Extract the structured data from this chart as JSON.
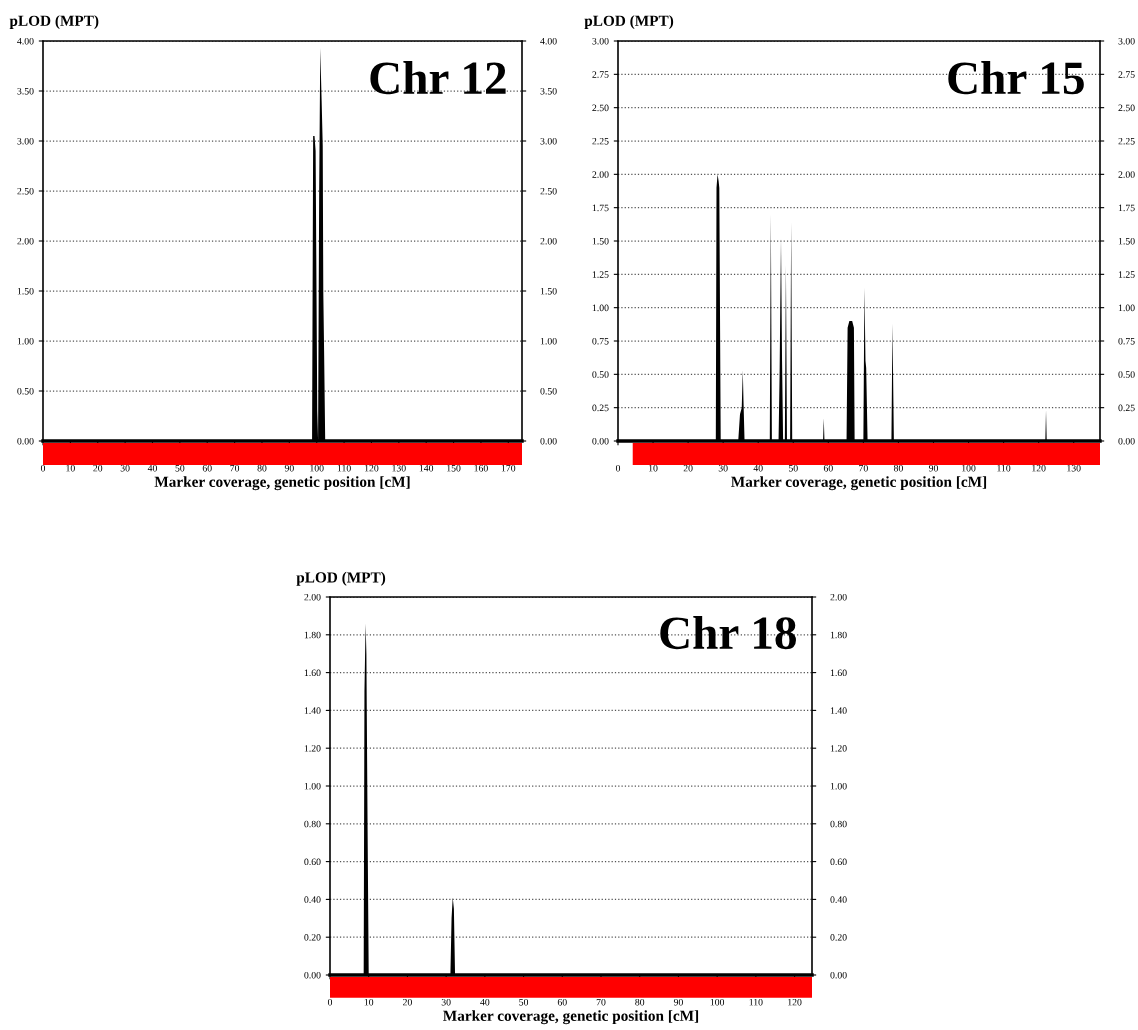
{
  "chart_data": [
    {
      "type": "area",
      "ylabel": "pLOD (MPT)",
      "xlabel": "Marker coverage, genetic position [cM]",
      "annotations": [
        "Chr 12"
      ],
      "grid": "y",
      "series": [
        {
          "color": "#000000",
          "x": [
            0,
            98.3,
            98.7,
            99.2,
            99.6,
            100.2,
            100.5,
            100.9,
            101.3,
            101.7,
            101.8,
            102.2,
            102.4,
            102.7,
            103.1,
            175
          ],
          "values": [
            0,
            0,
            3.05,
            3.05,
            2.9,
            0.3,
            0,
            2.5,
            3.93,
            3.5,
            3.4,
            2.95,
            1.5,
            0.9,
            0,
            0
          ]
        }
      ],
      "xlim": [
        0,
        175
      ],
      "xticks": [
        0,
        10,
        20,
        30,
        40,
        50,
        60,
        70,
        80,
        90,
        100,
        110,
        120,
        130,
        140,
        150,
        160,
        170
      ],
      "ylim": [
        0,
        4
      ],
      "yticks": [
        {
          "value": 0,
          "label": "0.00"
        },
        {
          "value": 0.5,
          "label": "0.50"
        },
        {
          "value": 1,
          "label": "1.00"
        },
        {
          "value": 1.5,
          "label": "1.50"
        },
        {
          "value": 2,
          "label": "2.00"
        },
        {
          "value": 2.5,
          "label": "2.50"
        },
        {
          "value": 3,
          "label": "3.00"
        },
        {
          "value": 3.5,
          "label": "3.50"
        },
        {
          "value": 4,
          "label": "4.00"
        }
      ],
      "y2lim": [
        0,
        4
      ],
      "y2ticks": [
        {
          "value": 0,
          "label": "0.00"
        },
        {
          "value": 0.5,
          "label": "0.50"
        },
        {
          "value": 1,
          "label": "1.00"
        },
        {
          "value": 1.5,
          "label": "1.50"
        },
        {
          "value": 2,
          "label": "2.00"
        },
        {
          "value": 2.5,
          "label": "2.50"
        },
        {
          "value": 3,
          "label": "3.00"
        },
        {
          "value": 3.5,
          "label": "3.50"
        },
        {
          "value": 4,
          "label": "4.00"
        }
      ]
    },
    {
      "type": "area",
      "ylabel": "pLOD (MPT)",
      "xlabel": "Marker coverage, genetic position [cM]",
      "annotations": [
        "Chr 15"
      ],
      "grid": "y",
      "series": [
        {
          "color": "#000000",
          "x": [
            4.2,
            27.9,
            28.1,
            28.4,
            28.7,
            28.9,
            29.3,
            34.3,
            34.8,
            35.3,
            35.6,
            35.8,
            36.1,
            43.3,
            43.6,
            43.9,
            45.8,
            46.1,
            46.5,
            46.8,
            47.1,
            47.6,
            47.9,
            48.2,
            49.1,
            49.4,
            49.7,
            58.5,
            58.7,
            58.9,
            65.2,
            65.5,
            66.0,
            66.8,
            67.3,
            67.5,
            70.0,
            70.3,
            70.6,
            70.8,
            71.2,
            78.0,
            78.3,
            78.7,
            121.9,
            122.1,
            122.3,
            137.5
          ],
          "values": [
            0,
            0,
            1.9,
            2.0,
            1.95,
            1.9,
            0,
            0,
            0.2,
            0.25,
            0.53,
            0.3,
            0,
            0,
            1.7,
            0,
            0,
            0.5,
            1.52,
            0.6,
            0,
            0,
            1.32,
            0,
            0,
            1.64,
            0,
            0,
            0.17,
            0,
            0,
            0.85,
            0.9,
            0.9,
            0.85,
            0,
            0,
            1.15,
            0.6,
            0.55,
            0,
            0,
            0.88,
            0,
            0,
            0.23,
            0,
            0
          ]
        }
      ],
      "xlim": [
        0,
        137.5
      ],
      "xticks": [
        0,
        10,
        20,
        30,
        40,
        50,
        60,
        70,
        80,
        90,
        100,
        110,
        120,
        130
      ],
      "ylim": [
        0,
        3
      ],
      "yticks": [
        {
          "value": 0,
          "label": "0.00"
        },
        {
          "value": 0.25,
          "label": "0.25"
        },
        {
          "value": 0.5,
          "label": "0.50"
        },
        {
          "value": 0.75,
          "label": "0.75"
        },
        {
          "value": 1,
          "label": "1.00"
        },
        {
          "value": 1.25,
          "label": "1.25"
        },
        {
          "value": 1.5,
          "label": "1.50"
        },
        {
          "value": 1.75,
          "label": "1.75"
        },
        {
          "value": 2,
          "label": "2.00"
        },
        {
          "value": 2.25,
          "label": "2.25"
        },
        {
          "value": 2.5,
          "label": "2.50"
        },
        {
          "value": 2.75,
          "label": "2.75"
        },
        {
          "value": 3,
          "label": "3.00"
        }
      ],
      "y2lim": [
        0,
        3
      ],
      "y2ticks": [
        {
          "value": 0,
          "label": "0.00"
        },
        {
          "value": 0.25,
          "label": "0.25"
        },
        {
          "value": 0.5,
          "label": "0.50"
        },
        {
          "value": 0.75,
          "label": "0.75"
        },
        {
          "value": 1,
          "label": "1.00"
        },
        {
          "value": 1.25,
          "label": "1.25"
        },
        {
          "value": 1.5,
          "label": "1.50"
        },
        {
          "value": 1.75,
          "label": "1.75"
        },
        {
          "value": 2,
          "label": "2.00"
        },
        {
          "value": 2.25,
          "label": "2.25"
        },
        {
          "value": 2.5,
          "label": "2.50"
        },
        {
          "value": 2.75,
          "label": "2.75"
        },
        {
          "value": 3,
          "label": "3.00"
        }
      ]
    },
    {
      "type": "area",
      "ylabel": "pLOD (MPT)",
      "xlabel": "Marker coverage, genetic position [cM]",
      "annotations": [
        "Chr 18"
      ],
      "grid": "y",
      "series": [
        {
          "color": "#000000",
          "x": [
            0,
            8.7,
            8.9,
            9.2,
            9.4,
            9.7,
            10.0,
            31.1,
            31.4,
            31.7,
            32.0,
            32.3,
            124.5
          ],
          "values": [
            0,
            0,
            1.5,
            1.86,
            1.7,
            0.8,
            0,
            0,
            0.3,
            0.41,
            0.35,
            0,
            0
          ]
        }
      ],
      "xlim": [
        0,
        124.5
      ],
      "xticks": [
        0,
        10,
        20,
        30,
        40,
        50,
        60,
        70,
        80,
        90,
        100,
        110,
        120
      ],
      "ylim": [
        0,
        2
      ],
      "yticks": [
        {
          "value": 0,
          "label": "0.00"
        },
        {
          "value": 0.2,
          "label": "0.20"
        },
        {
          "value": 0.4,
          "label": "0.40"
        },
        {
          "value": 0.6,
          "label": "0.60"
        },
        {
          "value": 0.8,
          "label": "0.80"
        },
        {
          "value": 1,
          "label": "1.00"
        },
        {
          "value": 1.2,
          "label": "1.20"
        },
        {
          "value": 1.4,
          "label": "1.40"
        },
        {
          "value": 1.6,
          "label": "1.60"
        },
        {
          "value": 1.8,
          "label": "1.80"
        },
        {
          "value": 2,
          "label": "2.00"
        }
      ],
      "y2lim": [
        0,
        2
      ],
      "y2ticks": [
        {
          "value": 0,
          "label": "0.00"
        },
        {
          "value": 0.2,
          "label": "0.20"
        },
        {
          "value": 0.4,
          "label": "0.40"
        },
        {
          "value": 0.6,
          "label": "0.60"
        },
        {
          "value": 0.8,
          "label": "0.80"
        },
        {
          "value": 1,
          "label": "1.00"
        },
        {
          "value": 1.2,
          "label": "1.20"
        },
        {
          "value": 1.4,
          "label": "1.40"
        },
        {
          "value": 1.6,
          "label": "1.60"
        },
        {
          "value": 1.8,
          "label": "1.80"
        },
        {
          "value": 2,
          "label": "2.00"
        }
      ]
    }
  ]
}
